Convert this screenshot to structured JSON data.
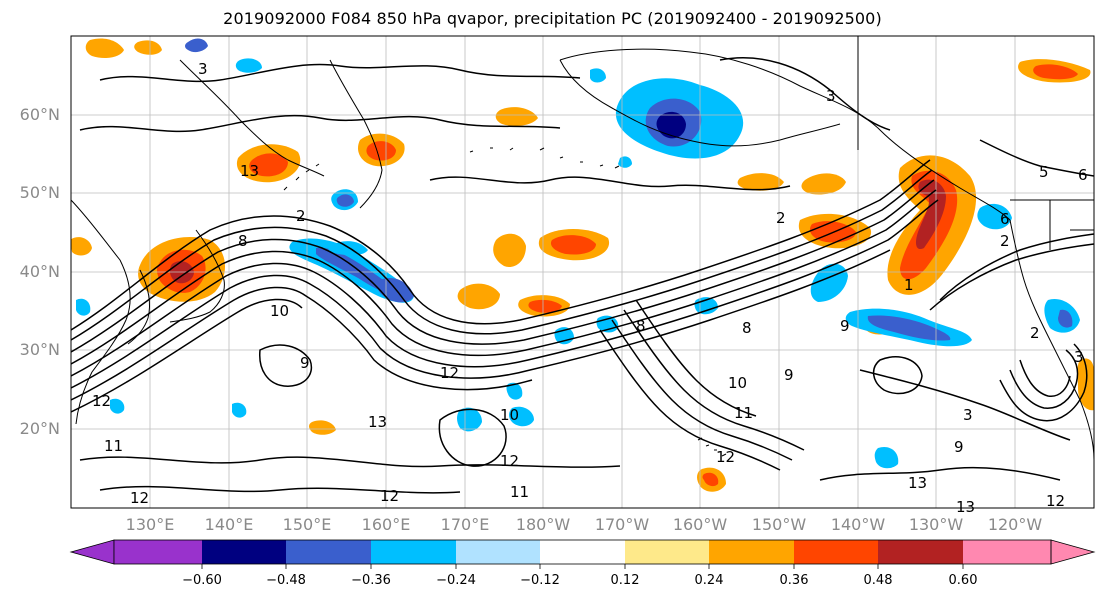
{
  "title": "2019092000 F084 850 hPa qvapor, precipitation PC (2019092400 - 2019092500)",
  "lat_labels": [
    "60°N",
    "50°N",
    "40°N",
    "30°N",
    "20°N"
  ],
  "lon_labels": [
    "130°E",
    "140°E",
    "150°E",
    "160°E",
    "170°E",
    "180°W",
    "170°W",
    "160°W",
    "150°W",
    "140°W",
    "130°W",
    "120°W"
  ],
  "contour_labels": [
    "3",
    "3",
    "5",
    "6",
    "2",
    "2",
    "2",
    "8",
    "10",
    "9",
    "12",
    "10",
    "11",
    "12",
    "11",
    "13",
    "12",
    "12",
    "8",
    "9",
    "10",
    "11",
    "12",
    "13",
    "13",
    "12",
    "12",
    "13",
    "9",
    "8",
    "9",
    "1",
    "3",
    "3",
    "6",
    "2"
  ],
  "colorbar": {
    "colors": [
      "#9932cc",
      "#000080",
      "#3a5fcd",
      "#00bfff",
      "#b0e2ff",
      "#ffffff",
      "#fee98a",
      "#ffa500",
      "#ff4500",
      "#b22222",
      "#ff88b0"
    ],
    "tick_labels": [
      "−0.60",
      "−0.48",
      "−0.36",
      "−0.24",
      "−0.12",
      "0.12",
      "0.24",
      "0.36",
      "0.48",
      "0.60"
    ]
  }
}
